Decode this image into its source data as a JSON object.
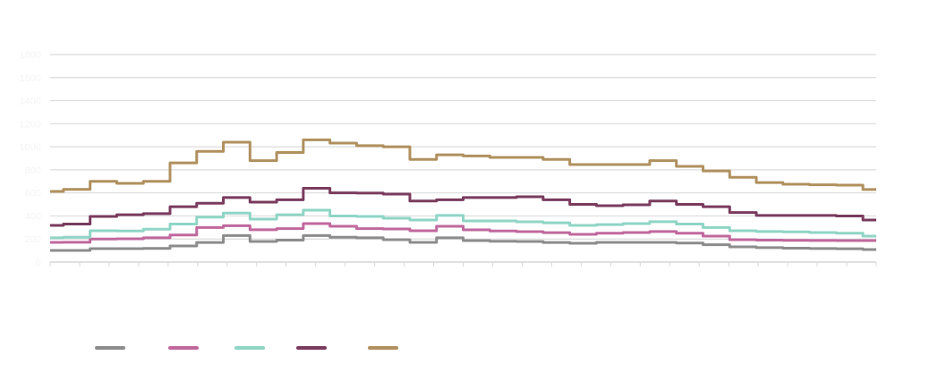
{
  "chart_data": {
    "type": "line",
    "title": "",
    "xlabel": "",
    "ylabel": "",
    "ylim": [
      0,
      1800
    ],
    "yticks": [
      "0",
      "200",
      "400",
      "600",
      "800",
      "1000",
      "1200",
      "1400",
      "1600",
      "1800"
    ],
    "grid": true,
    "legend_position": "bottom",
    "sample_count": 32,
    "series": [
      {
        "color": "#8c8c8c",
        "values": [
          101,
          101,
          116,
          116,
          118,
          140,
          170,
          230,
          178,
          190,
          230,
          215,
          210,
          194,
          171,
          210,
          186,
          180,
          178,
          170,
          163,
          171,
          171,
          171,
          165,
          150,
          132,
          125,
          120,
          117,
          115,
          109
        ]
      },
      {
        "color": "#c0689e",
        "values": [
          171,
          172,
          200,
          202,
          210,
          235,
          300,
          315,
          280,
          290,
          334,
          310,
          290,
          287,
          272,
          310,
          279,
          270,
          264,
          255,
          241,
          250,
          256,
          265,
          250,
          225,
          194,
          190,
          188,
          187,
          186,
          186
        ]
      },
      {
        "color": "#8fd5c5",
        "values": [
          210,
          215,
          272,
          270,
          285,
          330,
          390,
          425,
          372,
          410,
          450,
          400,
          396,
          380,
          365,
          404,
          357,
          357,
          349,
          340,
          318,
          325,
          334,
          350,
          330,
          300,
          272,
          265,
          262,
          256,
          250,
          225
        ]
      },
      {
        "color": "#7a3b5e",
        "values": [
          318,
          330,
          396,
          410,
          420,
          480,
          510,
          560,
          520,
          540,
          640,
          600,
          598,
          590,
          530,
          540,
          560,
          560,
          566,
          540,
          500,
          489,
          497,
          530,
          500,
          480,
          430,
          404,
          404,
          404,
          400,
          365
        ]
      },
      {
        "color": "#b0905e",
        "values": [
          613,
          630,
          700,
          683,
          700,
          860,
          960,
          1040,
          880,
          950,
          1060,
          1032,
          1010,
          1000,
          890,
          930,
          920,
          908,
          908,
          890,
          846,
          846,
          846,
          880,
          830,
          790,
          735,
          690,
          675,
          670,
          667,
          629
        ]
      }
    ]
  }
}
